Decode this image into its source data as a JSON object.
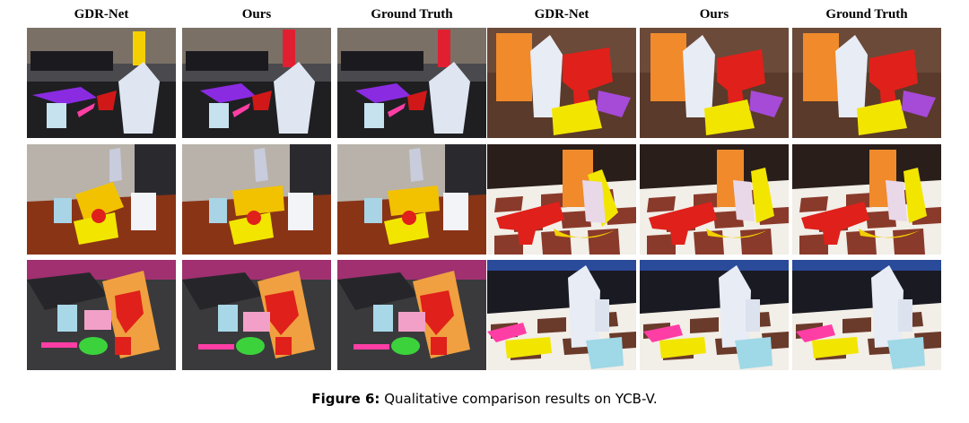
{
  "figure": {
    "column_headers": [
      "GDR-Net",
      "Ours",
      "Ground Truth",
      "GDR-Net",
      "Ours",
      "Ground Truth"
    ],
    "caption_label": "Figure 6:",
    "caption_text": " Qualitative comparison results on YCB-V."
  },
  "colors": {
    "purple_overlay": "#8a2be2",
    "yellow_overlay": "#f2e600",
    "red_overlay": "#e0201a",
    "pink_overlay": "#ff3ea5",
    "green_overlay": "#3cd23c",
    "white_overlay": "#e8ecf5",
    "cyan_overlay": "#9fd8e6",
    "orange_overlay": "#f08a2a"
  }
}
